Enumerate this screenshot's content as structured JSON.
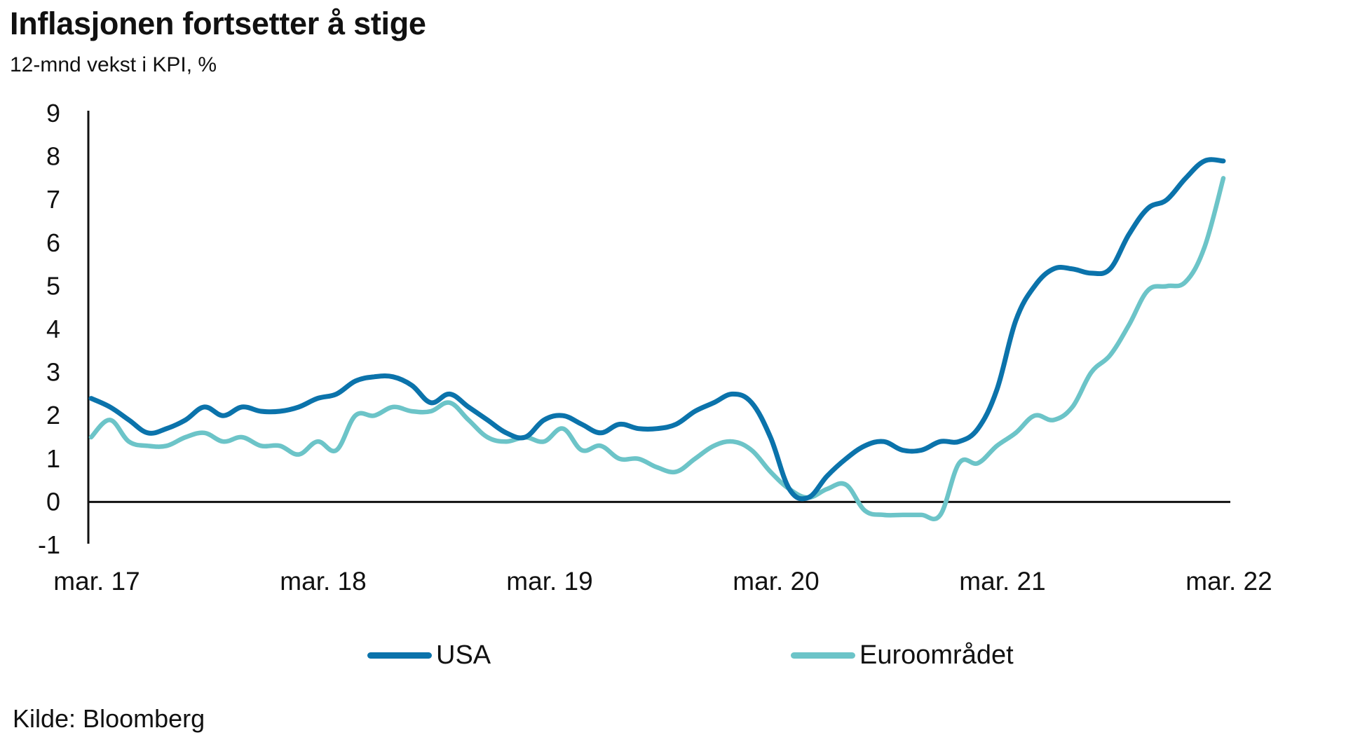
{
  "title": "Inflasjonen fortsetter å stige",
  "subtitle": "12-mnd vekst i KPI, %",
  "source": "Kilde: Bloomberg",
  "chart_data": {
    "type": "line",
    "title": "Inflasjonen fortsetter å stige",
    "subtitle": "12-mnd vekst i KPI, %",
    "xlabel": "",
    "ylabel": "",
    "ylim": [
      -1,
      9
    ],
    "yticks": [
      "-1",
      "0",
      "1",
      "2",
      "3",
      "4",
      "5",
      "6",
      "7",
      "8",
      "9"
    ],
    "xtick_labels": [
      "mar. 17",
      "mar. 18",
      "mar. 19",
      "mar. 20",
      "mar. 21",
      "mar. 22"
    ],
    "x": [
      "2017-03",
      "2017-04",
      "2017-05",
      "2017-06",
      "2017-07",
      "2017-08",
      "2017-09",
      "2017-10",
      "2017-11",
      "2017-12",
      "2018-01",
      "2018-02",
      "2018-03",
      "2018-04",
      "2018-05",
      "2018-06",
      "2018-07",
      "2018-08",
      "2018-09",
      "2018-10",
      "2018-11",
      "2018-12",
      "2019-01",
      "2019-02",
      "2019-03",
      "2019-04",
      "2019-05",
      "2019-06",
      "2019-07",
      "2019-08",
      "2019-09",
      "2019-10",
      "2019-11",
      "2019-12",
      "2020-01",
      "2020-02",
      "2020-03",
      "2020-04",
      "2020-05",
      "2020-06",
      "2020-07",
      "2020-08",
      "2020-09",
      "2020-10",
      "2020-11",
      "2020-12",
      "2021-01",
      "2021-02",
      "2021-03",
      "2021-04",
      "2021-05",
      "2021-06",
      "2021-07",
      "2021-08",
      "2021-09",
      "2021-10",
      "2021-11",
      "2021-12",
      "2022-01",
      "2022-02",
      "2022-03"
    ],
    "grid": false,
    "legend_position": "bottom",
    "series": [
      {
        "name": "USA",
        "color": "#0b73ab",
        "values": [
          2.4,
          2.2,
          1.9,
          1.6,
          1.7,
          1.9,
          2.2,
          2.0,
          2.2,
          2.1,
          2.1,
          2.2,
          2.4,
          2.5,
          2.8,
          2.9,
          2.9,
          2.7,
          2.3,
          2.5,
          2.2,
          1.9,
          1.6,
          1.5,
          1.9,
          2.0,
          1.8,
          1.6,
          1.8,
          1.7,
          1.7,
          1.8,
          2.1,
          2.3,
          2.5,
          2.3,
          1.5,
          0.3,
          0.1,
          0.6,
          1.0,
          1.3,
          1.4,
          1.2,
          1.2,
          1.4,
          1.4,
          1.7,
          2.6,
          4.2,
          5.0,
          5.4,
          5.4,
          5.3,
          5.4,
          6.2,
          6.8,
          7.0,
          7.5,
          7.9,
          7.9
        ]
      },
      {
        "name": "Euroområdet",
        "color": "#6cc4c8",
        "values": [
          1.5,
          1.9,
          1.4,
          1.3,
          1.3,
          1.5,
          1.6,
          1.4,
          1.5,
          1.3,
          1.3,
          1.1,
          1.4,
          1.2,
          2.0,
          2.0,
          2.2,
          2.1,
          2.1,
          2.3,
          1.9,
          1.5,
          1.4,
          1.5,
          1.4,
          1.7,
          1.2,
          1.3,
          1.0,
          1.0,
          0.8,
          0.7,
          1.0,
          1.3,
          1.4,
          1.2,
          0.7,
          0.3,
          0.1,
          0.3,
          0.4,
          -0.2,
          -0.3,
          -0.3,
          -0.3,
          -0.3,
          0.9,
          0.9,
          1.3,
          1.6,
          2.0,
          1.9,
          2.2,
          3.0,
          3.4,
          4.1,
          4.9,
          5.0,
          5.1,
          5.9,
          7.5
        ]
      }
    ]
  }
}
